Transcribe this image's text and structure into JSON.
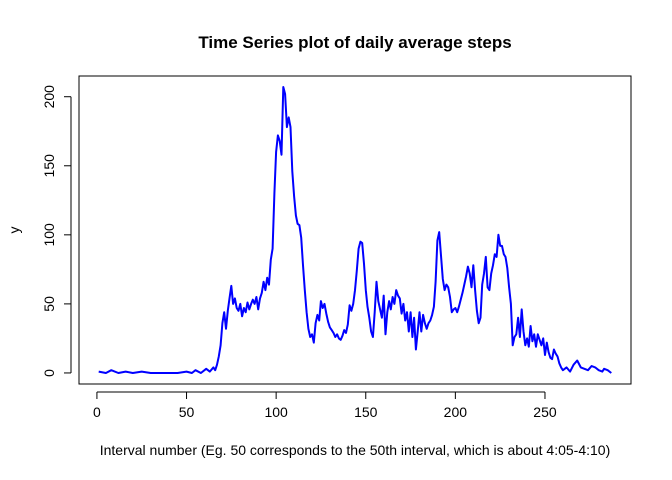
{
  "chart_data": {
    "type": "line",
    "title": "Time Series plot of daily average steps",
    "xlabel": "Interval number (Eg. 50 corresponds to the 50th interval, which is about 4:05-4:10)",
    "ylabel": "y",
    "xlim": [
      -10,
      298
    ],
    "ylim": [
      -8,
      215
    ],
    "xticks": [
      0,
      50,
      100,
      150,
      200,
      250
    ],
    "yticks": [
      0,
      50,
      100,
      150,
      200
    ],
    "grid": false,
    "legend": "none",
    "series": [
      {
        "color": "#0000ff",
        "points": [
          [
            1,
            1
          ],
          [
            5,
            0
          ],
          [
            8,
            2
          ],
          [
            12,
            0
          ],
          [
            16,
            1
          ],
          [
            20,
            0
          ],
          [
            25,
            1
          ],
          [
            30,
            0
          ],
          [
            35,
            0
          ],
          [
            40,
            0
          ],
          [
            45,
            0
          ],
          [
            50,
            1
          ],
          [
            53,
            0
          ],
          [
            55,
            2
          ],
          [
            58,
            0
          ],
          [
            61,
            3
          ],
          [
            63,
            1
          ],
          [
            65,
            4
          ],
          [
            66,
            2
          ],
          [
            67,
            6
          ],
          [
            68,
            12
          ],
          [
            69,
            20
          ],
          [
            70,
            36
          ],
          [
            71,
            44
          ],
          [
            72,
            32
          ],
          [
            73,
            45
          ],
          [
            74,
            54
          ],
          [
            75,
            63
          ],
          [
            76,
            50
          ],
          [
            77,
            54
          ],
          [
            78,
            47
          ],
          [
            79,
            45
          ],
          [
            80,
            50
          ],
          [
            81,
            41
          ],
          [
            82,
            47
          ],
          [
            83,
            44
          ],
          [
            84,
            51
          ],
          [
            85,
            46
          ],
          [
            86,
            50
          ],
          [
            87,
            53
          ],
          [
            88,
            50
          ],
          [
            89,
            55
          ],
          [
            90,
            46
          ],
          [
            91,
            54
          ],
          [
            92,
            58
          ],
          [
            93,
            66
          ],
          [
            94,
            60
          ],
          [
            95,
            69
          ],
          [
            96,
            64
          ],
          [
            97,
            82
          ],
          [
            98,
            90
          ],
          [
            99,
            130
          ],
          [
            100,
            160
          ],
          [
            101,
            172
          ],
          [
            102,
            168
          ],
          [
            103,
            158
          ],
          [
            104,
            207
          ],
          [
            105,
            202
          ],
          [
            106,
            178
          ],
          [
            107,
            185
          ],
          [
            108,
            178
          ],
          [
            109,
            146
          ],
          [
            110,
            128
          ],
          [
            111,
            114
          ],
          [
            112,
            108
          ],
          [
            113,
            107
          ],
          [
            114,
            98
          ],
          [
            115,
            78
          ],
          [
            116,
            60
          ],
          [
            117,
            44
          ],
          [
            118,
            32
          ],
          [
            119,
            26
          ],
          [
            120,
            28
          ],
          [
            121,
            22
          ],
          [
            122,
            36
          ],
          [
            123,
            42
          ],
          [
            124,
            38
          ],
          [
            125,
            52
          ],
          [
            126,
            47
          ],
          [
            127,
            50
          ],
          [
            128,
            43
          ],
          [
            129,
            37
          ],
          [
            130,
            33
          ],
          [
            131,
            31
          ],
          [
            132,
            29
          ],
          [
            133,
            26
          ],
          [
            134,
            28
          ],
          [
            135,
            25
          ],
          [
            136,
            24
          ],
          [
            137,
            27
          ],
          [
            138,
            31
          ],
          [
            139,
            29
          ],
          [
            140,
            35
          ],
          [
            141,
            49
          ],
          [
            142,
            45
          ],
          [
            143,
            50
          ],
          [
            144,
            60
          ],
          [
            145,
            74
          ],
          [
            146,
            90
          ],
          [
            147,
            95
          ],
          [
            148,
            94
          ],
          [
            149,
            79
          ],
          [
            150,
            60
          ],
          [
            151,
            48
          ],
          [
            152,
            40
          ],
          [
            153,
            30
          ],
          [
            154,
            26
          ],
          [
            155,
            44
          ],
          [
            156,
            66
          ],
          [
            157,
            52
          ],
          [
            158,
            46
          ],
          [
            159,
            40
          ],
          [
            160,
            56
          ],
          [
            161,
            28
          ],
          [
            162,
            44
          ],
          [
            163,
            52
          ],
          [
            164,
            46
          ],
          [
            165,
            55
          ],
          [
            166,
            50
          ],
          [
            167,
            60
          ],
          [
            168,
            56
          ],
          [
            169,
            54
          ],
          [
            170,
            43
          ],
          [
            171,
            50
          ],
          [
            172,
            38
          ],
          [
            173,
            44
          ],
          [
            174,
            30
          ],
          [
            175,
            44
          ],
          [
            176,
            26
          ],
          [
            177,
            40
          ],
          [
            178,
            17
          ],
          [
            179,
            30
          ],
          [
            180,
            44
          ],
          [
            181,
            30
          ],
          [
            182,
            42
          ],
          [
            183,
            36
          ],
          [
            184,
            32
          ],
          [
            185,
            36
          ],
          [
            186,
            38
          ],
          [
            187,
            42
          ],
          [
            188,
            48
          ],
          [
            189,
            66
          ],
          [
            190,
            96
          ],
          [
            191,
            102
          ],
          [
            192,
            85
          ],
          [
            193,
            68
          ],
          [
            194,
            60
          ],
          [
            195,
            64
          ],
          [
            196,
            62
          ],
          [
            197,
            55
          ],
          [
            198,
            44
          ],
          [
            199,
            46
          ],
          [
            200,
            47
          ],
          [
            201,
            44
          ],
          [
            202,
            48
          ],
          [
            203,
            53
          ],
          [
            204,
            58
          ],
          [
            205,
            64
          ],
          [
            206,
            70
          ],
          [
            207,
            77
          ],
          [
            208,
            72
          ],
          [
            209,
            62
          ],
          [
            210,
            78
          ],
          [
            211,
            60
          ],
          [
            212,
            45
          ],
          [
            213,
            36
          ],
          [
            214,
            40
          ],
          [
            215,
            64
          ],
          [
            216,
            72
          ],
          [
            217,
            84
          ],
          [
            218,
            62
          ],
          [
            219,
            60
          ],
          [
            220,
            72
          ],
          [
            221,
            78
          ],
          [
            222,
            86
          ],
          [
            223,
            84
          ],
          [
            224,
            100
          ],
          [
            225,
            92
          ],
          [
            226,
            92
          ],
          [
            227,
            86
          ],
          [
            228,
            84
          ],
          [
            229,
            76
          ],
          [
            230,
            62
          ],
          [
            231,
            50
          ],
          [
            232,
            20
          ],
          [
            233,
            26
          ],
          [
            234,
            28
          ],
          [
            235,
            40
          ],
          [
            236,
            26
          ],
          [
            237,
            46
          ],
          [
            238,
            30
          ],
          [
            239,
            20
          ],
          [
            240,
            25
          ],
          [
            241,
            19
          ],
          [
            242,
            34
          ],
          [
            243,
            23
          ],
          [
            244,
            28
          ],
          [
            245,
            19
          ],
          [
            246,
            28
          ],
          [
            247,
            24
          ],
          [
            248,
            20
          ],
          [
            249,
            25
          ],
          [
            250,
            13
          ],
          [
            251,
            22
          ],
          [
            252,
            15
          ],
          [
            253,
            11
          ],
          [
            254,
            10
          ],
          [
            255,
            17
          ],
          [
            256,
            14
          ],
          [
            257,
            12
          ],
          [
            258,
            7
          ],
          [
            259,
            4
          ],
          [
            260,
            2
          ],
          [
            262,
            4
          ],
          [
            264,
            1
          ],
          [
            266,
            6
          ],
          [
            268,
            9
          ],
          [
            270,
            4
          ],
          [
            272,
            3
          ],
          [
            274,
            2
          ],
          [
            276,
            5
          ],
          [
            278,
            4
          ],
          [
            280,
            2
          ],
          [
            282,
            1
          ],
          [
            283,
            3
          ],
          [
            285,
            2
          ],
          [
            287,
            0
          ]
        ]
      }
    ]
  }
}
